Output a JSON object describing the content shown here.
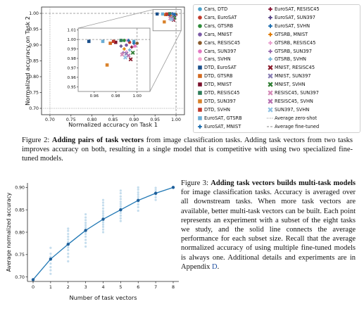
{
  "chart_data": [
    {
      "type": "scatter",
      "xlabel": "Normalized accuracy on Task 1",
      "ylabel": "Normalized accuracy on Task 2",
      "xlim": [
        0.68,
        1.02
      ],
      "ylim": [
        0.68,
        1.02
      ],
      "xticks": [
        "0.70",
        "0.75",
        "0.80",
        "0.85",
        "0.90",
        "0.95",
        "1.00"
      ],
      "yticks": [
        "0.70",
        "0.75",
        "0.80",
        "0.85",
        "0.90",
        "0.95",
        "1.00"
      ],
      "inset": {
        "xlim": [
          0.945,
          1.012
        ],
        "ylim": [
          0.945,
          1.012
        ],
        "xticks": [
          "0.96",
          "0.98",
          "1.00"
        ],
        "yticks": [
          "0.95",
          "0.96",
          "0.97",
          "0.98",
          "0.99",
          "1.00",
          "1.01"
        ]
      },
      "reference_lines": [
        "Average zero-shot",
        "Average fine-tuned"
      ],
      "series": [
        {
          "name": "Cars, DTD",
          "color": "#4a9fc8",
          "marker": "circle",
          "x": 0.997,
          "y": 0.998
        },
        {
          "name": "Cars, EuroSAT",
          "color": "#c0392b",
          "marker": "circle",
          "x": 0.993,
          "y": 0.997
        },
        {
          "name": "Cars, GTSRB",
          "color": "#2e8b3a",
          "marker": "circle",
          "x": 0.988,
          "y": 0.999
        },
        {
          "name": "Cars, MNIST",
          "color": "#7b5aa6",
          "marker": "circle",
          "x": 0.99,
          "y": 0.994
        },
        {
          "name": "Cars, RESISC45",
          "color": "#8a5a2b",
          "marker": "circle",
          "x": 1.0,
          "y": 0.996
        },
        {
          "name": "Cars, SUN397",
          "color": "#e377c2",
          "marker": "circle",
          "x": 0.998,
          "y": 0.993
        },
        {
          "name": "Cars, SVHN",
          "color": "#f4a6d0",
          "marker": "circle",
          "x": 0.991,
          "y": 0.999
        },
        {
          "name": "DTD, EuroSAT",
          "color": "#1a4f8b",
          "marker": "square",
          "x": 0.955,
          "y": 0.998
        },
        {
          "name": "DTD, GTSRB",
          "color": "#d2691e",
          "marker": "square",
          "x": 0.975,
          "y": 0.996
        },
        {
          "name": "DTD, MNIST",
          "color": "#7a0f2b",
          "marker": "square",
          "x": 0.98,
          "y": 0.997
        },
        {
          "name": "DTD, RESISC45",
          "color": "#2e7d5a",
          "marker": "square",
          "x": 0.985,
          "y": 0.999
        },
        {
          "name": "DTD, SUN397",
          "color": "#d9822b",
          "marker": "square",
          "x": 0.972,
          "y": 0.973
        },
        {
          "name": "DTD, SVHN",
          "color": "#c0392b",
          "marker": "square",
          "x": 0.978,
          "y": 0.998
        },
        {
          "name": "EuroSAT, GTSRB",
          "color": "#6baed6",
          "marker": "square",
          "x": 0.968,
          "y": 0.998
        },
        {
          "name": "EuroSAT, MNIST",
          "color": "#1f6fb0",
          "marker": "plus",
          "x": 0.992,
          "y": 0.999
        },
        {
          "name": "EuroSAT, RESISC45",
          "color": "#8b1a3a",
          "marker": "plus",
          "x": 0.995,
          "y": 0.992
        },
        {
          "name": "EuroSAT, SUN397",
          "color": "#5b4a8b",
          "marker": "plus",
          "x": 0.985,
          "y": 0.993
        },
        {
          "name": "EuroSAT, SVHN",
          "color": "#1f6fb0",
          "marker": "plus",
          "x": 0.997,
          "y": 0.996
        },
        {
          "name": "GTSRB, MNIST",
          "color": "#e07b00",
          "marker": "plus",
          "x": 0.988,
          "y": 0.99
        },
        {
          "name": "GTSRB, RESISC45",
          "color": "#e9a0d0",
          "marker": "plus",
          "x": 0.99,
          "y": 0.987
        },
        {
          "name": "GTSRB, SUN397",
          "color": "#9a6fb0",
          "marker": "plus",
          "x": 0.987,
          "y": 0.986
        },
        {
          "name": "GTSRB, SVHN",
          "color": "#7fb8d8",
          "marker": "plus",
          "x": 0.993,
          "y": 0.989
        },
        {
          "name": "MNIST, RESISC45",
          "color": "#8b1a2b",
          "marker": "x",
          "x": 0.994,
          "y": 0.979
        },
        {
          "name": "MNIST, SUN397",
          "color": "#8a7fb5",
          "marker": "x",
          "x": 0.99,
          "y": 0.985
        },
        {
          "name": "MNIST, SVHN",
          "color": "#2e7d32",
          "marker": "x",
          "x": 0.996,
          "y": 0.986
        },
        {
          "name": "RESISC45, SUN397",
          "color": "#d48ab8",
          "marker": "x",
          "x": 0.986,
          "y": 0.984
        },
        {
          "name": "RESISC45, SVHN",
          "color": "#b66fb0",
          "marker": "x",
          "x": 0.992,
          "y": 0.983
        },
        {
          "name": "SUN397, SVHN",
          "color": "#8fc1e3",
          "marker": "x",
          "x": 0.989,
          "y": 0.981
        }
      ]
    },
    {
      "type": "line",
      "xlabel": "Number of task vectors",
      "ylabel": "Average normalized accuracy",
      "xlim": [
        0,
        8
      ],
      "ylim": [
        0.69,
        0.91
      ],
      "xticks": [
        "0",
        "1",
        "2",
        "3",
        "4",
        "5",
        "6",
        "7",
        "8"
      ],
      "yticks": [
        "0.70",
        "0.75",
        "0.80",
        "0.85",
        "0.90"
      ],
      "line": {
        "x": [
          0,
          1,
          2,
          3,
          4,
          5,
          6,
          7,
          8
        ],
        "y": [
          0.694,
          0.74,
          0.773,
          0.804,
          0.829,
          0.85,
          0.871,
          0.887,
          0.9
        ]
      },
      "scatter": {
        "x": [
          1,
          1,
          1,
          1,
          1,
          1,
          1,
          1,
          2,
          2,
          2,
          2,
          2,
          2,
          2,
          2,
          2,
          2,
          2,
          2,
          3,
          3,
          3,
          3,
          3,
          3,
          3,
          3,
          3,
          3,
          3,
          3,
          3,
          4,
          4,
          4,
          4,
          4,
          4,
          4,
          4,
          4,
          4,
          4,
          4,
          4,
          4,
          5,
          5,
          5,
          5,
          5,
          5,
          5,
          5,
          5,
          5,
          5,
          5,
          5,
          6,
          6,
          6,
          6,
          6,
          6,
          6,
          6,
          6,
          6,
          7,
          7,
          7,
          7,
          7,
          7
        ],
        "y": [
          0.707,
          0.715,
          0.722,
          0.73,
          0.738,
          0.745,
          0.752,
          0.765,
          0.735,
          0.745,
          0.752,
          0.76,
          0.766,
          0.772,
          0.778,
          0.784,
          0.79,
          0.796,
          0.803,
          0.808,
          0.768,
          0.776,
          0.783,
          0.79,
          0.796,
          0.801,
          0.806,
          0.811,
          0.816,
          0.821,
          0.827,
          0.833,
          0.84,
          0.8,
          0.806,
          0.812,
          0.817,
          0.822,
          0.827,
          0.832,
          0.837,
          0.842,
          0.847,
          0.853,
          0.86,
          0.866,
          0.872,
          0.825,
          0.831,
          0.837,
          0.843,
          0.848,
          0.853,
          0.858,
          0.863,
          0.868,
          0.874,
          0.88,
          0.887,
          0.893,
          0.848,
          0.856,
          0.862,
          0.868,
          0.874,
          0.879,
          0.884,
          0.889,
          0.895,
          0.9,
          0.872,
          0.878,
          0.884,
          0.889,
          0.894,
          0.899
        ]
      }
    }
  ],
  "legend_cols": [
    [
      {
        "label": "Cars, DTD",
        "color": "#4a9fc8",
        "marker": "circle"
      },
      {
        "label": "Cars, EuroSAT",
        "color": "#c0392b",
        "marker": "circle"
      },
      {
        "label": "Cars, GTSRB",
        "color": "#2e8b3a",
        "marker": "circle"
      },
      {
        "label": "Cars, MNIST",
        "color": "#7b5aa6",
        "marker": "circle"
      },
      {
        "label": "Cars, RESISC45",
        "color": "#8a5a2b",
        "marker": "circle"
      },
      {
        "label": "Cars, SUN397",
        "color": "#e377c2",
        "marker": "circle"
      },
      {
        "label": "Cars, SVHN",
        "color": "#f4a6d0",
        "marker": "circle"
      },
      {
        "label": "DTD, EuroSAT",
        "color": "#1a4f8b",
        "marker": "square"
      },
      {
        "label": "DTD, GTSRB",
        "color": "#d2691e",
        "marker": "square"
      },
      {
        "label": "DTD, MNIST",
        "color": "#7a0f2b",
        "marker": "square"
      },
      {
        "label": "DTD, RESISC45",
        "color": "#2e7d5a",
        "marker": "square"
      },
      {
        "label": "DTD, SUN397",
        "color": "#d9822b",
        "marker": "square"
      },
      {
        "label": "DTD, SVHN",
        "color": "#c0392b",
        "marker": "square"
      },
      {
        "label": "EuroSAT, GTSRB",
        "color": "#6baed6",
        "marker": "square"
      },
      {
        "label": "EuroSAT, MNIST",
        "color": "#1f6fb0",
        "marker": "plus"
      }
    ],
    [
      {
        "label": "EuroSAT, RESISC45",
        "color": "#8b1a3a",
        "marker": "plus"
      },
      {
        "label": "EuroSAT, SUN397",
        "color": "#5b4a8b",
        "marker": "plus"
      },
      {
        "label": "EuroSAT, SVHN",
        "color": "#1f6fb0",
        "marker": "plus"
      },
      {
        "label": "GTSRB, MNIST",
        "color": "#e07b00",
        "marker": "plus"
      },
      {
        "label": "GTSRB, RESISC45",
        "color": "#e9a0d0",
        "marker": "plus"
      },
      {
        "label": "GTSRB, SUN397",
        "color": "#9a6fb0",
        "marker": "plus"
      },
      {
        "label": "GTSRB, SVHN",
        "color": "#7fb8d8",
        "marker": "plus"
      },
      {
        "label": "MNIST, RESISC45",
        "color": "#8b1a2b",
        "marker": "x"
      },
      {
        "label": "MNIST, SUN397",
        "color": "#8a7fb5",
        "marker": "x"
      },
      {
        "label": "MNIST, SVHN",
        "color": "#2e7d32",
        "marker": "x"
      },
      {
        "label": "RESISC45, SUN397",
        "color": "#d48ab8",
        "marker": "x"
      },
      {
        "label": "RESISC45, SVHN",
        "color": "#b66fb0",
        "marker": "x"
      },
      {
        "label": "SUN397, SVHN",
        "color": "#8fc1e3",
        "marker": "x"
      },
      {
        "label": "Average zero-shot",
        "color": "#888888",
        "marker": "dotted-line"
      },
      {
        "label": "Average fine-tuned",
        "color": "#888888",
        "marker": "dashed-line"
      }
    ]
  ],
  "figure2": {
    "prefix": "Figure 2: ",
    "bold": "Adding pairs of task vectors",
    "rest": " from image classification tasks. Adding task vectors from two tasks improves accuracy on both, resulting in a single model that is competitive with using two specialized fine-tuned models."
  },
  "figure3": {
    "prefix": "Figure 3: ",
    "bold": "Adding task vectors builds multi-task models",
    "rest": " for image classification tasks. Accuracy is averaged over all downstream tasks. When more task vectors are available, better multi-task vectors can be built. Each point represents an experiment with a subset of the eight tasks we study, and the solid line connects the average performance for each subset size. Recall that the average normalized accuracy of using multiple fine-tuned models is always one. Additional details and experiments are in Appendix ",
    "link": "D",
    "end": "."
  }
}
